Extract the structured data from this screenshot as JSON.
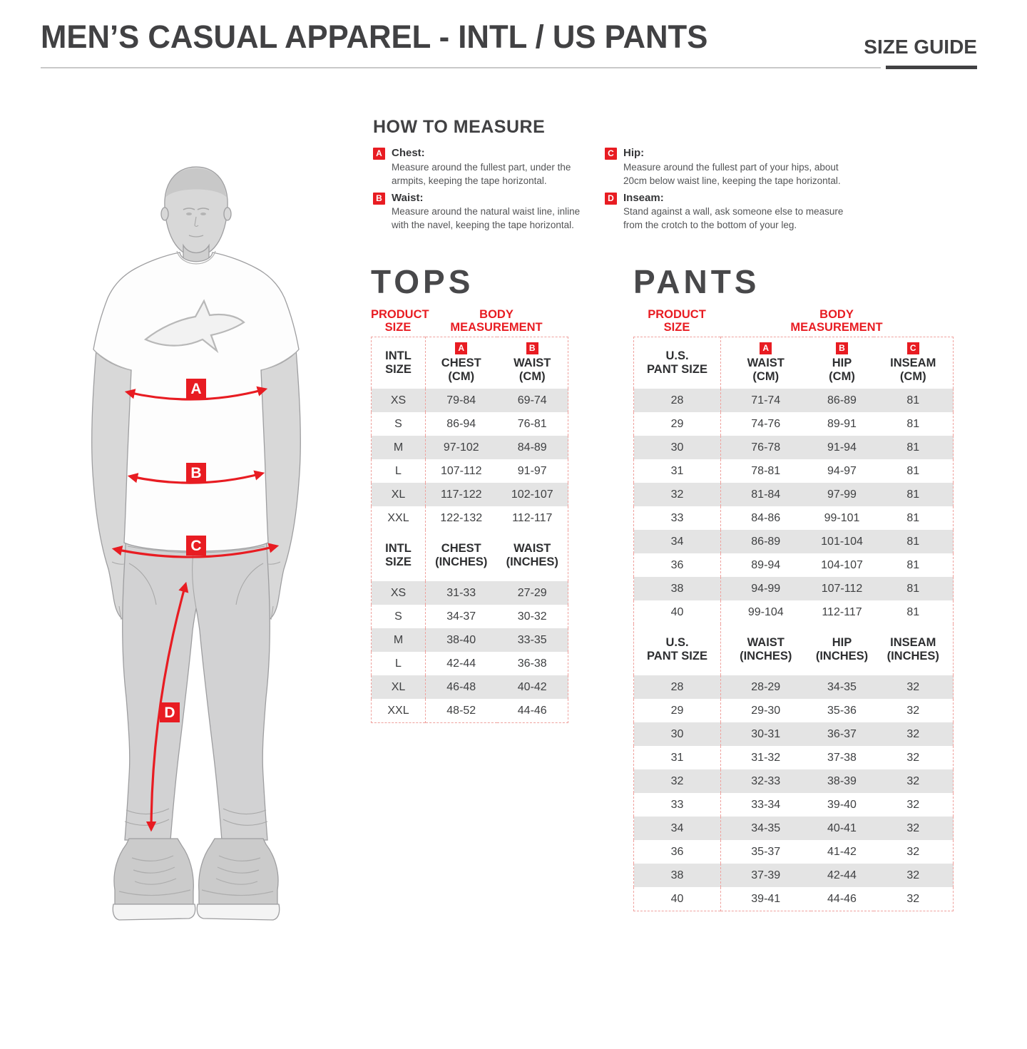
{
  "header": {
    "title": "MEN’S CASUAL APPAREL - INTL / US PANTS",
    "badge": "SIZE GUIDE"
  },
  "how_to_measure": {
    "heading": "HOW TO MEASURE",
    "items": [
      {
        "letter": "A",
        "label": "Chest:",
        "description": "Measure around the fullest part, under the armpits, keeping the tape horizontal."
      },
      {
        "letter": "B",
        "label": "Waist:",
        "description": "Measure around the natural waist line, inline with the navel, keeping the tape horizontal."
      },
      {
        "letter": "C",
        "label": "Hip:",
        "description": "Measure around the fullest part of your hips, about 20cm below waist line, keeping the tape horizontal."
      },
      {
        "letter": "D",
        "label": "Inseam:",
        "description": "Stand against a wall, ask someone else to measure from the crotch to the bottom of your leg."
      }
    ]
  },
  "figure": {
    "labels": [
      "A",
      "B",
      "C",
      "D"
    ]
  },
  "tops": {
    "heading": "TOPS",
    "product_size_header": "PRODUCT\nSIZE",
    "body_measurement_header": "BODY\nMEASUREMENT",
    "cm": {
      "size_col": "INTL\nSIZE",
      "badges": [
        "A",
        "B"
      ],
      "cols": [
        "CHEST\n(CM)",
        "WAIST\n(CM)"
      ],
      "rows": [
        [
          "XS",
          "79-84",
          "69-74"
        ],
        [
          "S",
          "86-94",
          "76-81"
        ],
        [
          "M",
          "97-102",
          "84-89"
        ],
        [
          "L",
          "107-112",
          "91-97"
        ],
        [
          "XL",
          "117-122",
          "102-107"
        ],
        [
          "XXL",
          "122-132",
          "112-117"
        ]
      ]
    },
    "inches": {
      "size_col": "INTL\nSIZE",
      "cols": [
        "CHEST\n(INCHES)",
        "WAIST\n(INCHES)"
      ],
      "rows": [
        [
          "XS",
          "31-33",
          "27-29"
        ],
        [
          "S",
          "34-37",
          "30-32"
        ],
        [
          "M",
          "38-40",
          "33-35"
        ],
        [
          "L",
          "42-44",
          "36-38"
        ],
        [
          "XL",
          "46-48",
          "40-42"
        ],
        [
          "XXL",
          "48-52",
          "44-46"
        ]
      ]
    }
  },
  "pants": {
    "heading": "PANTS",
    "product_size_header": "PRODUCT\nSIZE",
    "body_measurement_header": "BODY\nMEASUREMENT",
    "cm": {
      "size_col": "U.S.\nPANT SIZE",
      "badges": [
        "A",
        "B",
        "C"
      ],
      "cols": [
        "WAIST\n(CM)",
        "HIP\n(CM)",
        "INSEAM\n(CM)"
      ],
      "rows": [
        [
          "28",
          "71-74",
          "86-89",
          "81"
        ],
        [
          "29",
          "74-76",
          "89-91",
          "81"
        ],
        [
          "30",
          "76-78",
          "91-94",
          "81"
        ],
        [
          "31",
          "78-81",
          "94-97",
          "81"
        ],
        [
          "32",
          "81-84",
          "97-99",
          "81"
        ],
        [
          "33",
          "84-86",
          "99-101",
          "81"
        ],
        [
          "34",
          "86-89",
          "101-104",
          "81"
        ],
        [
          "36",
          "89-94",
          "104-107",
          "81"
        ],
        [
          "38",
          "94-99",
          "107-112",
          "81"
        ],
        [
          "40",
          "99-104",
          "112-117",
          "81"
        ]
      ]
    },
    "inches": {
      "size_col": "U.S.\nPANT SIZE",
      "cols": [
        "WAIST\n(INCHES)",
        "HIP\n(INCHES)",
        "INSEAM\n(INCHES)"
      ],
      "rows": [
        [
          "28",
          "28-29",
          "34-35",
          "32"
        ],
        [
          "29",
          "29-30",
          "35-36",
          "32"
        ],
        [
          "30",
          "30-31",
          "36-37",
          "32"
        ],
        [
          "31",
          "31-32",
          "37-38",
          "32"
        ],
        [
          "32",
          "32-33",
          "38-39",
          "32"
        ],
        [
          "33",
          "33-34",
          "39-40",
          "32"
        ],
        [
          "34",
          "34-35",
          "40-41",
          "32"
        ],
        [
          "36",
          "35-37",
          "41-42",
          "32"
        ],
        [
          "38",
          "37-39",
          "42-44",
          "32"
        ],
        [
          "40",
          "39-41",
          "44-46",
          "32"
        ]
      ]
    }
  }
}
